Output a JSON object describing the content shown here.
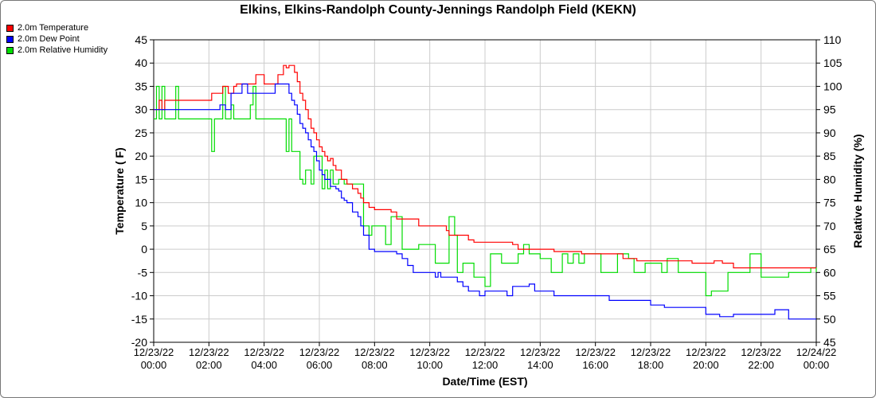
{
  "chart_data": {
    "type": "line",
    "title": "Elkins, Elkins-Randolph County-Jennings Randolph Field (KEKN)",
    "xlabel": "Date/Time (EST)",
    "ylabel": "Temperature ( F)",
    "ylabel_right": "Relative Humidity (%)",
    "xlim": [
      0,
      24
    ],
    "ylim": [
      -20,
      45
    ],
    "ylim_right": [
      45,
      110
    ],
    "x_ticks": [
      {
        "date": "12/23/22",
        "time": "00:00"
      },
      {
        "date": "12/23/22",
        "time": "02:00"
      },
      {
        "date": "12/23/22",
        "time": "04:00"
      },
      {
        "date": "12/23/22",
        "time": "06:00"
      },
      {
        "date": "12/23/22",
        "time": "08:00"
      },
      {
        "date": "12/23/22",
        "time": "10:00"
      },
      {
        "date": "12/23/22",
        "time": "12:00"
      },
      {
        "date": "12/23/22",
        "time": "14:00"
      },
      {
        "date": "12/23/22",
        "time": "16:00"
      },
      {
        "date": "12/23/22",
        "time": "18:00"
      },
      {
        "date": "12/23/22",
        "time": "20:00"
      },
      {
        "date": "12/23/22",
        "time": "22:00"
      },
      {
        "date": "12/24/22",
        "time": "00:00"
      }
    ],
    "y_ticks": [
      "45",
      "40",
      "35",
      "30",
      "25",
      "20",
      "15",
      "10",
      "5",
      "0",
      "-5",
      "-10",
      "-15",
      "-20"
    ],
    "y_ticks_right": [
      "110",
      "105",
      "100",
      "95",
      "90",
      "85",
      "80",
      "75",
      "70",
      "65",
      "60",
      "55",
      "50",
      "45"
    ],
    "grid": true,
    "legend_position": "top-left",
    "series": [
      {
        "name": "2.0m Temperature",
        "color": "#ff0000",
        "axis": "left",
        "x": [
          0,
          0.2,
          0.3,
          0.4,
          0.5,
          1,
          1.5,
          2,
          2.1,
          2.3,
          2.5,
          2.7,
          2.9,
          3,
          3.2,
          3.5,
          3.7,
          4,
          4.2,
          4.3,
          4.5,
          4.6,
          4.7,
          4.8,
          4.9,
          5.1,
          5.2,
          5.3,
          5.4,
          5.5,
          5.6,
          5.7,
          5.8,
          5.9,
          6,
          6.1,
          6.2,
          6.3,
          6.4,
          6.5,
          6.6,
          6.7,
          6.8,
          6.9,
          7,
          7.2,
          7.4,
          7.5,
          7.6,
          7.8,
          8,
          8.2,
          8.4,
          8.6,
          8.8,
          9,
          9.2,
          9.4,
          9.6,
          9.8,
          10,
          10.2,
          10.4,
          10.6,
          10.7,
          10.8,
          11,
          11.2,
          11.4,
          11.6,
          11.8,
          12,
          12.2,
          12.4,
          12.6,
          12.8,
          13,
          13.2,
          13.4,
          13.6,
          13.8,
          14,
          14.5,
          15,
          15.5,
          16,
          16.5,
          17,
          17.5,
          18,
          18.5,
          19,
          19.5,
          20,
          20.3,
          20.6,
          21,
          22,
          23,
          24
        ],
        "values": [
          30,
          32,
          30,
          32,
          32,
          32,
          32,
          32,
          33.5,
          33.5,
          35,
          33.5,
          35,
          35.5,
          35.5,
          35.5,
          37.5,
          35.5,
          35.5,
          35.5,
          37.5,
          37.5,
          39.5,
          39,
          39.5,
          38,
          36,
          33.5,
          32,
          30,
          28,
          26,
          25,
          23.5,
          22,
          21,
          20,
          19,
          19.5,
          18,
          17,
          17,
          15,
          15,
          14,
          13,
          12,
          11,
          10,
          9,
          8.5,
          8.5,
          8.5,
          8,
          6.5,
          6.5,
          6.5,
          6.5,
          5,
          5,
          5,
          5,
          5,
          4,
          3,
          3,
          3,
          3,
          2,
          1.5,
          1.5,
          1.5,
          1.5,
          1.5,
          1.5,
          1.5,
          1,
          0,
          0,
          0,
          0,
          0,
          -0.5,
          -0.5,
          -1,
          -1,
          -1,
          -2,
          -2.5,
          -2.5,
          -2.5,
          -2.5,
          -3,
          -3,
          -2.5,
          -3,
          -4,
          -4,
          -4,
          -4
        ]
      },
      {
        "name": "2.0m Dew Point",
        "color": "#0000ff",
        "axis": "left",
        "x": [
          0,
          0.3,
          0.5,
          1,
          1.5,
          2,
          2.2,
          2.4,
          2.6,
          2.8,
          3,
          3.2,
          3.4,
          3.6,
          3.8,
          4,
          4.2,
          4.4,
          4.6,
          4.8,
          4.9,
          5,
          5.1,
          5.2,
          5.3,
          5.4,
          5.5,
          5.6,
          5.7,
          5.8,
          5.9,
          6,
          6.1,
          6.2,
          6.3,
          6.4,
          6.5,
          6.6,
          6.7,
          6.8,
          6.9,
          7,
          7.2,
          7.4,
          7.5,
          7.6,
          7.8,
          8,
          8.2,
          8.4,
          8.6,
          8.8,
          9,
          9.2,
          9.4,
          9.6,
          9.8,
          10,
          10.2,
          10.3,
          10.4,
          10.6,
          10.8,
          11,
          11.2,
          11.4,
          11.6,
          11.8,
          12,
          12.2,
          12.4,
          12.6,
          12.8,
          13,
          13.2,
          13.4,
          13.6,
          13.8,
          14,
          14.5,
          15,
          15.5,
          16,
          16.5,
          17,
          17.5,
          18,
          18.5,
          19,
          19.5,
          20,
          20.5,
          21,
          21.5,
          22,
          22.5,
          23,
          23.5,
          24
        ],
        "values": [
          30,
          30,
          30,
          30,
          30,
          30,
          30,
          31,
          30,
          33.5,
          33.5,
          35.5,
          33.5,
          33.5,
          33.5,
          33.5,
          33.5,
          35.5,
          35.5,
          35.5,
          33.5,
          32,
          31,
          29,
          27,
          26,
          25,
          23.5,
          22,
          21,
          19,
          17,
          16,
          15,
          15,
          13.5,
          13.5,
          13,
          12.5,
          11,
          10.5,
          10,
          8,
          7,
          5,
          3,
          0,
          -0.5,
          -0.5,
          -0.5,
          -0.5,
          -1,
          -2,
          -3.5,
          -5,
          -5,
          -5,
          -5,
          -6,
          -5,
          -6,
          -6,
          -6,
          -7,
          -8,
          -9,
          -9,
          -10,
          -9,
          -9,
          -9,
          -9,
          -10,
          -8,
          -8,
          -8,
          -7.5,
          -9,
          -9,
          -10,
          -10,
          -10,
          -10,
          -11,
          -11,
          -11,
          -12,
          -12.5,
          -12.5,
          -12.5,
          -14,
          -14.5,
          -14,
          -14,
          -14,
          -13,
          -15,
          -15,
          -15
        ]
      },
      {
        "name": "2.0m Relative Humidity",
        "color": "#00dd00",
        "axis": "right",
        "x": [
          0,
          0.1,
          0.2,
          0.3,
          0.4,
          0.5,
          0.6,
          0.7,
          0.8,
          0.9,
          1,
          1.1,
          1.2,
          1.3,
          1.4,
          1.5,
          1.6,
          1.7,
          1.8,
          1.9,
          2,
          2.1,
          2.2,
          2.3,
          2.4,
          2.5,
          2.6,
          2.7,
          2.8,
          2.9,
          3,
          3.1,
          3.2,
          3.3,
          3.4,
          3.5,
          3.6,
          3.7,
          3.8,
          3.9,
          4,
          4.1,
          4.2,
          4.3,
          4.4,
          4.5,
          4.6,
          4.7,
          4.8,
          4.9,
          5,
          5.1,
          5.2,
          5.3,
          5.4,
          5.5,
          5.6,
          5.7,
          5.8,
          5.9,
          6,
          6.1,
          6.2,
          6.3,
          6.4,
          6.5,
          6.6,
          6.7,
          6.8,
          6.9,
          7,
          7.1,
          7.2,
          7.3,
          7.4,
          7.5,
          7.6,
          7.7,
          7.8,
          7.9,
          8,
          8.2,
          8.4,
          8.6,
          8.8,
          9,
          9.2,
          9.4,
          9.6,
          9.8,
          10,
          10.2,
          10.4,
          10.6,
          10.7,
          10.8,
          10.9,
          11,
          11.2,
          11.4,
          11.6,
          11.8,
          12,
          12.2,
          12.4,
          12.6,
          12.8,
          13,
          13.2,
          13.4,
          13.6,
          13.8,
          14,
          14.2,
          14.4,
          14.6,
          14.8,
          15,
          15.2,
          15.4,
          15.6,
          15.8,
          16,
          16.2,
          16.4,
          16.6,
          16.8,
          17,
          17.2,
          17.4,
          17.6,
          17.8,
          18,
          18.2,
          18.4,
          18.6,
          18.8,
          19,
          19.2,
          19.4,
          19.6,
          19.8,
          20,
          20.2,
          20.4,
          20.6,
          20.8,
          21,
          21.2,
          21.4,
          21.6,
          21.8,
          22,
          22.2,
          22.4,
          22.6,
          22.8,
          23,
          23.2,
          23.4,
          23.6,
          23.8,
          24
        ],
        "values": [
          93,
          100,
          93,
          100,
          93,
          93,
          93,
          93,
          100,
          93,
          93,
          93,
          93,
          93,
          93,
          93,
          93,
          93,
          93,
          93,
          93,
          86,
          93,
          93,
          93,
          100,
          93,
          93,
          96,
          93,
          93,
          93,
          93,
          93,
          93,
          96,
          100,
          93,
          93,
          93,
          93,
          93,
          93,
          93,
          93,
          93,
          93,
          93,
          86,
          93,
          86,
          86,
          86,
          80,
          79,
          82,
          82,
          79,
          85,
          85,
          85,
          78,
          82,
          78,
          82,
          79,
          79,
          80,
          80,
          79,
          79,
          79,
          79,
          79,
          79,
          79,
          70,
          70,
          68,
          70,
          70,
          70,
          66,
          72,
          72,
          65,
          65,
          65,
          66,
          66,
          66,
          62,
          62,
          62,
          72,
          72,
          68,
          60,
          62,
          62,
          59,
          59,
          57,
          64,
          64,
          62,
          62,
          62,
          64,
          66,
          64,
          64,
          63,
          63,
          60,
          60,
          64,
          62,
          64,
          62,
          64,
          64,
          64,
          60,
          60,
          60,
          64,
          64,
          63,
          60,
          60,
          62,
          62,
          62,
          60,
          63,
          63,
          60,
          60,
          60,
          60,
          60,
          55,
          56,
          56,
          56,
          60,
          60,
          60,
          60,
          64,
          64,
          59,
          59,
          59,
          59,
          59,
          60,
          60,
          60,
          60,
          61,
          60
        ]
      }
    ]
  }
}
